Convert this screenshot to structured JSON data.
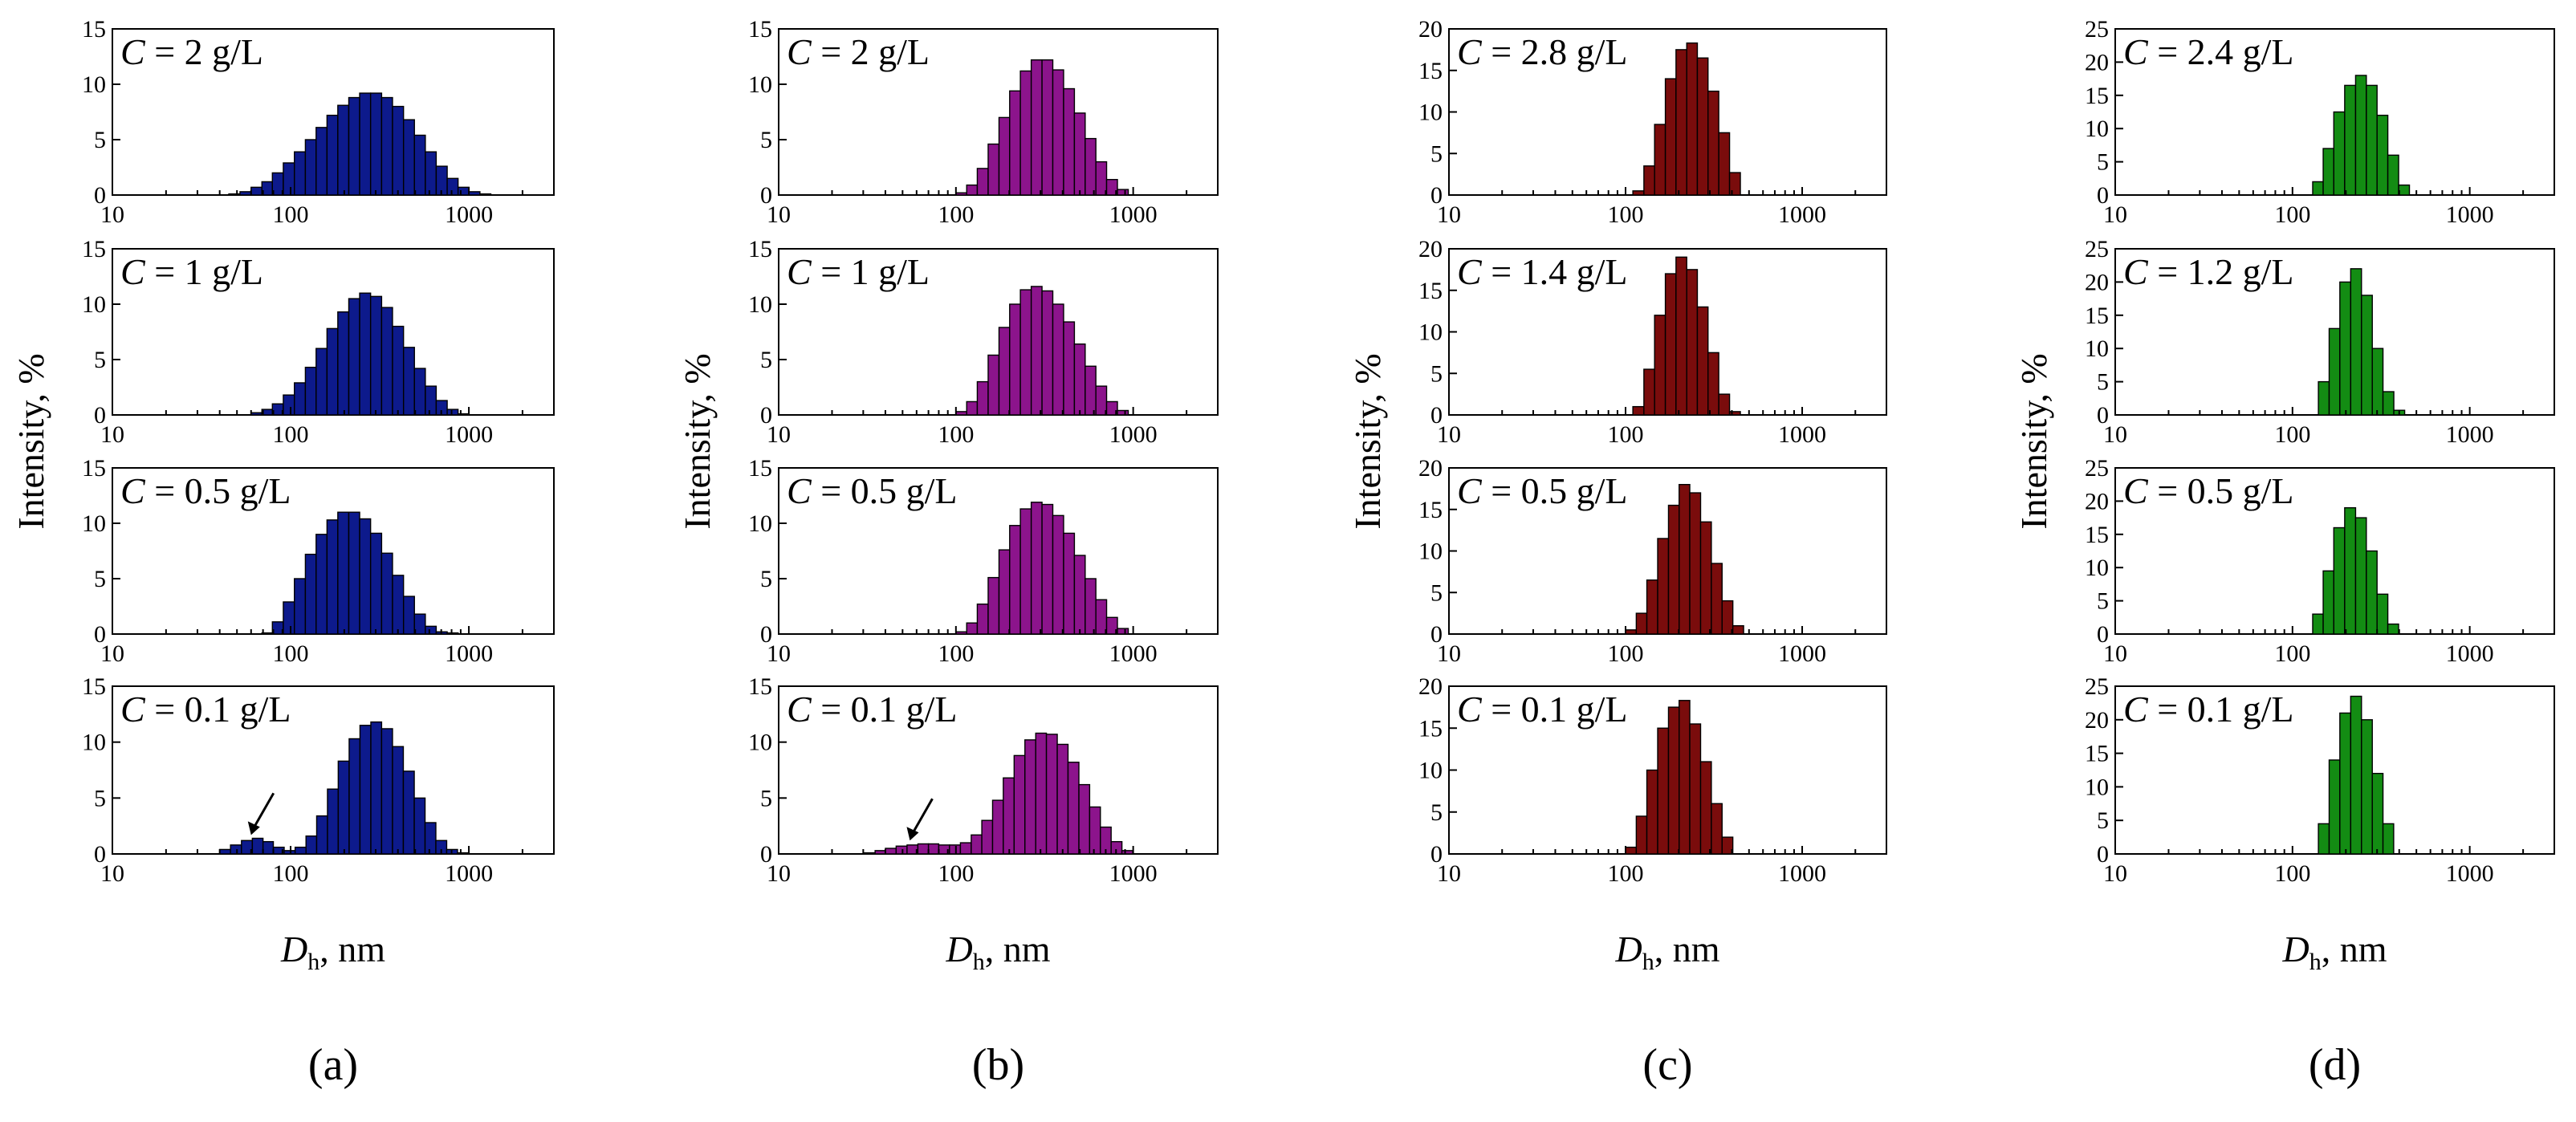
{
  "figure": {
    "x_axis_label": "D",
    "x_axis_label_subscript": "h",
    "x_axis_label_suffix": ", nm",
    "y_axis_label": "Intensity, %"
  },
  "chart_data": [
    {
      "type": "bar",
      "panel": "(a)",
      "color": "#0d1a8c",
      "xlabel": "Dh, nm",
      "ylabel": "Intensity, %",
      "x_scale": "log",
      "xlim": [
        10,
        3000
      ],
      "x_ticks": [
        10,
        100,
        1000
      ],
      "x_tick_labels": [
        "10",
        "100",
        "1000"
      ],
      "ylim": [
        0,
        15
      ],
      "y_ticks": [
        0,
        5,
        10,
        15
      ],
      "y_tick_labels": [
        "0",
        "5",
        "10",
        "15"
      ],
      "subplots": [
        {
          "concentration_label": "C = 2 g/L",
          "bins_nm": [
            45,
            52,
            60,
            69,
            79,
            91,
            105,
            121,
            139,
            160,
            184,
            212,
            244,
            281,
            324,
            373,
            430,
            495,
            570,
            656,
            756,
            870,
            1002,
            1154
          ],
          "values": [
            0.1,
            0.3,
            0.7,
            1.2,
            2.0,
            2.9,
            3.9,
            5.0,
            6.1,
            7.2,
            8.1,
            8.8,
            9.2,
            9.2,
            8.8,
            8.0,
            6.8,
            5.4,
            3.9,
            2.6,
            1.5,
            0.7,
            0.3,
            0.1
          ]
        },
        {
          "concentration_label": "C = 1 g/L",
          "bins_nm": [
            60,
            69,
            79,
            91,
            105,
            121,
            139,
            160,
            184,
            212,
            244,
            281,
            324,
            373,
            430,
            495,
            570,
            656,
            756,
            870
          ],
          "values": [
            0.2,
            0.5,
            1.0,
            1.8,
            2.9,
            4.3,
            6.0,
            7.8,
            9.3,
            10.5,
            11.0,
            10.7,
            9.7,
            8.0,
            6.1,
            4.2,
            2.6,
            1.3,
            0.5,
            0.1
          ]
        },
        {
          "concentration_label": "C = 0.5 g/L",
          "bins_nm": [
            69,
            79,
            91,
            105,
            121,
            139,
            160,
            184,
            212,
            244,
            281,
            324,
            373,
            430,
            495,
            570,
            656,
            756
          ],
          "values": [
            0.1,
            1.1,
            2.9,
            5.0,
            7.2,
            9.0,
            10.3,
            11.0,
            11.0,
            10.4,
            9.1,
            7.3,
            5.3,
            3.4,
            1.8,
            0.7,
            0.2,
            0.1
          ]
        },
        {
          "concentration_label": "C = 0.1 g/L",
          "bins_nm": [
            40,
            46,
            53,
            61,
            70,
            80,
            92,
            106,
            122,
            140,
            161,
            185,
            213,
            245,
            282,
            324,
            373,
            429,
            494,
            568,
            653,
            751,
            864
          ],
          "values": [
            0.4,
            0.8,
            1.2,
            1.4,
            1.1,
            0.6,
            0.3,
            0.6,
            1.6,
            3.4,
            5.8,
            8.3,
            10.3,
            11.5,
            11.8,
            11.2,
            9.6,
            7.4,
            5.0,
            2.8,
            1.2,
            0.4,
            0.1
          ],
          "annotation": "arrow pointing to small-size peak near 60 nm"
        }
      ]
    },
    {
      "type": "bar",
      "panel": "(b)",
      "color": "#8c148c",
      "xlabel": "Dh, nm",
      "ylabel": "Intensity, %",
      "x_scale": "log",
      "xlim": [
        10,
        3000
      ],
      "x_ticks": [
        10,
        100,
        1000
      ],
      "x_tick_labels": [
        "10",
        "100",
        "1000"
      ],
      "ylim": [
        0,
        15
      ],
      "y_ticks": [
        0,
        5,
        10,
        15
      ],
      "y_tick_labels": [
        "0",
        "5",
        "10",
        "15"
      ],
      "subplots": [
        {
          "concentration_label": "C = 2 g/L",
          "bins_nm": [
            100,
            115,
            132,
            152,
            175,
            201,
            231,
            266,
            306,
            352,
            405,
            466,
            536,
            616,
            708,
            815
          ],
          "values": [
            0.2,
            0.9,
            2.4,
            4.6,
            7.0,
            9.4,
            11.2,
            12.2,
            12.2,
            11.3,
            9.6,
            7.4,
            5.1,
            3.0,
            1.4,
            0.5
          ]
        },
        {
          "concentration_label": "C = 1 g/L",
          "bins_nm": [
            100,
            115,
            132,
            152,
            175,
            201,
            231,
            266,
            306,
            352,
            405,
            466,
            536,
            616,
            708,
            815
          ],
          "values": [
            0.3,
            1.2,
            3.0,
            5.4,
            7.9,
            10.0,
            11.3,
            11.6,
            11.2,
            10.0,
            8.4,
            6.4,
            4.4,
            2.6,
            1.2,
            0.4
          ]
        },
        {
          "concentration_label": "C = 0.5 g/L",
          "bins_nm": [
            100,
            115,
            132,
            152,
            175,
            201,
            231,
            266,
            306,
            352,
            405,
            466,
            536,
            616,
            708,
            815
          ],
          "values": [
            0.2,
            1.0,
            2.7,
            5.1,
            7.6,
            9.8,
            11.3,
            11.9,
            11.7,
            10.7,
            9.1,
            7.1,
            5.0,
            3.1,
            1.5,
            0.5
          ]
        },
        {
          "concentration_label": "C = 0.1 g/L",
          "bins_nm": [
            30,
            35,
            40,
            46,
            53,
            61,
            70,
            80,
            92,
            106,
            122,
            140,
            161,
            185,
            213,
            245,
            282,
            324,
            373,
            429,
            494,
            568,
            653,
            751,
            864
          ],
          "values": [
            0.1,
            0.3,
            0.5,
            0.7,
            0.8,
            0.9,
            0.9,
            0.8,
            0.8,
            1.0,
            1.7,
            3.0,
            4.8,
            6.8,
            8.8,
            10.2,
            10.8,
            10.7,
            9.8,
            8.2,
            6.2,
            4.2,
            2.4,
            1.1,
            0.3
          ],
          "annotation": "arrow pointing to small-size tail near 55 nm"
        }
      ]
    },
    {
      "type": "bar",
      "panel": "(c)",
      "color": "#7a0c0c",
      "xlabel": "Dh, nm",
      "ylabel": "Intensity, %",
      "x_scale": "log",
      "xlim": [
        10,
        3000
      ],
      "x_ticks": [
        10,
        100,
        1000
      ],
      "x_tick_labels": [
        "10",
        "100",
        "1000"
      ],
      "ylim": [
        0,
        20
      ],
      "y_ticks": [
        0,
        5,
        10,
        15,
        20
      ],
      "y_tick_labels": [
        "0",
        "5",
        "10",
        "15",
        "20"
      ],
      "subplots": [
        {
          "concentration_label": "C = 2.8 g/L",
          "bins_nm": [
            110,
            127,
            146,
            168,
            193,
            222,
            255,
            293,
            337,
            388
          ],
          "values": [
            0.5,
            3.5,
            8.5,
            14.0,
            17.5,
            18.3,
            16.5,
            12.5,
            7.5,
            2.7
          ]
        },
        {
          "concentration_label": "C = 1.4 g/L",
          "bins_nm": [
            110,
            127,
            146,
            168,
            193,
            222,
            255,
            293,
            337,
            388
          ],
          "values": [
            1.0,
            5.5,
            12.0,
            17.0,
            19.0,
            17.5,
            13.0,
            7.5,
            2.5,
            0.4
          ]
        },
        {
          "concentration_label": "C = 0.5 g/L",
          "bins_nm": [
            100,
            115,
            132,
            152,
            175,
            201,
            231,
            266,
            306,
            352,
            405
          ],
          "values": [
            0.5,
            2.5,
            6.5,
            11.5,
            15.5,
            18.0,
            17.0,
            13.5,
            8.5,
            4.0,
            1.0
          ]
        },
        {
          "concentration_label": "C = 0.1 g/L",
          "bins_nm": [
            100,
            115,
            132,
            152,
            175,
            201,
            231,
            266,
            306,
            352
          ],
          "values": [
            0.8,
            4.5,
            10.0,
            15.0,
            17.5,
            18.3,
            15.5,
            11.0,
            6.0,
            2.0
          ]
        }
      ]
    },
    {
      "type": "bar",
      "panel": "(d)",
      "color": "#138c13",
      "xlabel": "Dh, nm",
      "ylabel": "Intensity, %",
      "x_scale": "log",
      "xlim": [
        10,
        3000
      ],
      "x_ticks": [
        10,
        100,
        1000
      ],
      "x_tick_labels": [
        "10",
        "100",
        "1000"
      ],
      "ylim": [
        0,
        25
      ],
      "y_ticks": [
        0,
        5,
        10,
        15,
        20,
        25
      ],
      "y_tick_labels": [
        "0",
        "5",
        "10",
        "15",
        "20",
        "25"
      ],
      "subplots": [
        {
          "concentration_label": "C = 2.4 g/L",
          "bins_nm": [
            130,
            149,
            171,
            197,
            227,
            261,
            300,
            345,
            397
          ],
          "values": [
            2.0,
            7.0,
            12.5,
            16.5,
            18.0,
            16.5,
            12.0,
            6.0,
            1.5
          ]
        },
        {
          "concentration_label": "C = 1.2 g/L",
          "bins_nm": [
            140,
            161,
            185,
            213,
            245,
            282,
            324,
            373
          ],
          "values": [
            5.0,
            13.0,
            20.0,
            22.0,
            18.0,
            10.0,
            3.5,
            0.7
          ]
        },
        {
          "concentration_label": "C = 0.5 g/L",
          "bins_nm": [
            130,
            149,
            171,
            197,
            227,
            261,
            300,
            345
          ],
          "values": [
            3.0,
            9.5,
            16.0,
            19.0,
            17.5,
            12.5,
            6.0,
            1.5
          ]
        },
        {
          "concentration_label": "C = 0.1 g/L",
          "bins_nm": [
            140,
            161,
            185,
            213,
            245,
            282,
            324
          ],
          "values": [
            4.5,
            14.0,
            21.0,
            23.5,
            20.0,
            12.0,
            4.5
          ]
        }
      ]
    }
  ]
}
